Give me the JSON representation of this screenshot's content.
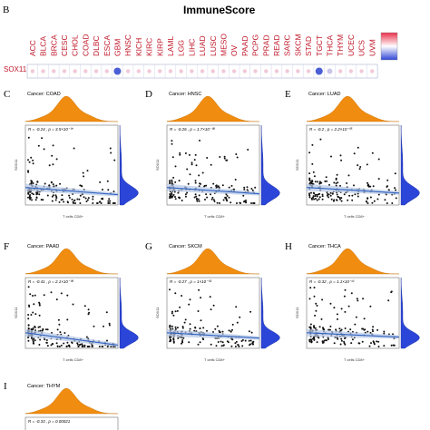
{
  "panel_b": {
    "letter": "B",
    "title": "ImmuneScore",
    "gene": "SOX11",
    "cancers": [
      "ACC",
      "BLCA",
      "BRCA",
      "CESC",
      "CHOL",
      "COAD",
      "DLBC",
      "ESCA",
      "GBM",
      "HNSC",
      "KICH",
      "KIRC",
      "KIRP",
      "LAML",
      "LGG",
      "LIHC",
      "LUAD",
      "LUSC",
      "MESO",
      "OV",
      "PAAD",
      "PCPG",
      "PRAD",
      "READ",
      "SARC",
      "SKCM",
      "STAD",
      "TGCT",
      "THCA",
      "THYM",
      "UCEC",
      "UCS",
      "UVM"
    ],
    "dot_colors": {
      "strong_negative": "#4a5fd6",
      "weak_negative": "#c9c3ea",
      "weak_positive": "#f1c9d6"
    },
    "cell_values": [
      0.05,
      0.1,
      0.1,
      0.15,
      0.05,
      0.2,
      0.05,
      0.1,
      -0.5,
      0.15,
      0.05,
      0.1,
      0.05,
      0.1,
      0.1,
      0.1,
      0.15,
      0.1,
      0.1,
      0.1,
      0.1,
      0.05,
      0.1,
      0.1,
      0.1,
      0.1,
      0.1,
      -0.5,
      -0.2,
      0.05,
      0.1,
      0.05,
      0.1
    ]
  },
  "panels": [
    {
      "letter": "C",
      "cancer": "Cancer: COAD",
      "stat": "R = -0.24 , p = 3.5×10⁻⁰⁷",
      "xlabel": "T cells CD8+",
      "ylabel": "SOX11"
    },
    {
      "letter": "D",
      "cancer": "Cancer: HNSC",
      "stat": "R = -0.26 , p = 1.7×10⁻⁰⁸",
      "xlabel": "T cells CD8+",
      "ylabel": "SOX11"
    },
    {
      "letter": "E",
      "cancer": "Cancer: LUAD",
      "stat": "R = -0.2 , p = 2.2×10⁻⁰⁵",
      "xlabel": "T cells CD8+",
      "ylabel": "SOX11"
    },
    {
      "letter": "F",
      "cancer": "Cancer: PAAD",
      "stat": "R = -0.41 , p = 2.1×10⁻⁰⁸",
      "xlabel": "T cells CD8+",
      "ylabel": "SOX11"
    },
    {
      "letter": "G",
      "cancer": "Cancer: SKCM",
      "stat": "R = -0.27 , p = 1×10⁻⁰⁹",
      "xlabel": "T cells CD8+",
      "ylabel": "SOX11"
    },
    {
      "letter": "H",
      "cancer": "Cancer: THCA",
      "stat": "R = -0.32 , p = 1.1×10⁻¹³",
      "xlabel": "T cells CD8+",
      "ylabel": "SOX11"
    },
    {
      "letter": "I",
      "cancer": "Cancer: THYM",
      "stat": "R = -0.33 , p = 0.00021",
      "xlabel": "",
      "ylabel": ""
    }
  ],
  "colors": {
    "density_top": "#f08c0f",
    "density_right": "#2b45d8",
    "fit_line": "#2f62c0",
    "band": "#b7c8e6",
    "points": "#111111",
    "code_text": "#c0182a"
  }
}
